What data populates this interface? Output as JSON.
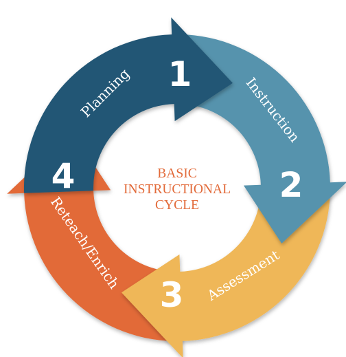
{
  "center_title": {
    "line1": "BASIC",
    "line2": "INSTRUCTIONAL",
    "line3": "CYCLE"
  },
  "segments": [
    {
      "number": "1",
      "label": "Planning",
      "color": "#235775"
    },
    {
      "number": "2",
      "label": "Instruction",
      "color": "#5793ad"
    },
    {
      "number": "3",
      "label": "Assessment",
      "color": "#efb758"
    },
    {
      "number": "4",
      "label": "Reteach/Enrich",
      "color": "#e26a39"
    }
  ],
  "colors": {
    "center_text": "#e26a39",
    "segment_text": "#ffffff",
    "background": "#ffffff"
  }
}
